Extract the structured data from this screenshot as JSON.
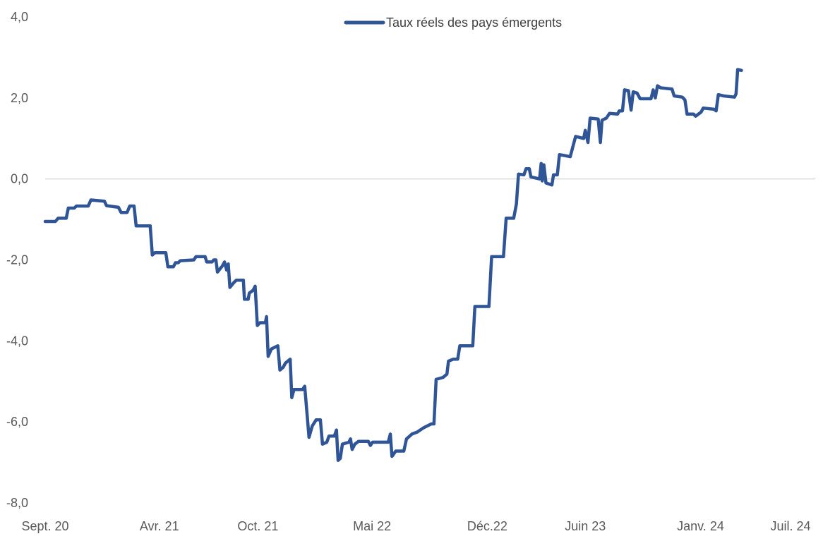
{
  "chart_data": {
    "type": "line",
    "title": "",
    "xlabel": "",
    "ylabel": "",
    "x_range": [
      "2020-09-01",
      "2024-08-01"
    ],
    "ylim": [
      -8,
      4
    ],
    "y_ticks": [
      4,
      2,
      0,
      -2,
      -4,
      -6,
      -8
    ],
    "y_tick_labels": [
      "4,0",
      "2,0",
      "0,0",
      "-2,0",
      "-4,0",
      "-6,0",
      "-8,0"
    ],
    "x_tick_labels": [
      {
        "date": "2020-09-01",
        "label": "Sept. 20"
      },
      {
        "date": "2021-04-01",
        "label": "Avr. 21"
      },
      {
        "date": "2021-10-01",
        "label": "Oct. 21"
      },
      {
        "date": "2022-05-01",
        "label": "Mai 22"
      },
      {
        "date": "2022-12-01",
        "label": "Déc.22"
      },
      {
        "date": "2023-06-01",
        "label": "Juin 23"
      },
      {
        "date": "2024-01-01",
        "label": "Janv. 24"
      },
      {
        "date": "2024-07-01",
        "label": "Juil. 24"
      }
    ],
    "zero_line": true,
    "grid": false,
    "legend_position": "top-center",
    "colors": {
      "series": "#2f5597",
      "zero_line": "#d9d9d9",
      "text": "#595959"
    },
    "series": [
      {
        "name": "Taux réels des pays émergents",
        "points": [
          [
            "2020-09-01",
            -1.05
          ],
          [
            "2020-09-20",
            -1.05
          ],
          [
            "2020-09-25",
            -0.97
          ],
          [
            "2020-10-10",
            -0.97
          ],
          [
            "2020-10-14",
            -0.72
          ],
          [
            "2020-10-25",
            -0.72
          ],
          [
            "2020-10-29",
            -0.67
          ],
          [
            "2020-11-20",
            -0.67
          ],
          [
            "2020-11-25",
            -0.52
          ],
          [
            "2020-12-20",
            -0.55
          ],
          [
            "2020-12-24",
            -0.66
          ],
          [
            "2021-01-15",
            -0.7
          ],
          [
            "2021-01-20",
            -0.83
          ],
          [
            "2021-01-31",
            -0.83
          ],
          [
            "2021-02-05",
            -0.67
          ],
          [
            "2021-02-13",
            -0.67
          ],
          [
            "2021-02-17",
            -1.16
          ],
          [
            "2021-03-15",
            -1.16
          ],
          [
            "2021-03-19",
            -1.88
          ],
          [
            "2021-03-24",
            -1.82
          ],
          [
            "2021-04-13",
            -1.82
          ],
          [
            "2021-04-17",
            -2.17
          ],
          [
            "2021-04-27",
            -2.17
          ],
          [
            "2021-05-01",
            -2.07
          ],
          [
            "2021-05-06",
            -2.07
          ],
          [
            "2021-05-10",
            -2.02
          ],
          [
            "2021-06-04",
            -2.0
          ],
          [
            "2021-06-08",
            -1.92
          ],
          [
            "2021-06-25",
            -1.92
          ],
          [
            "2021-06-28",
            -2.05
          ],
          [
            "2021-07-08",
            -2.05
          ],
          [
            "2021-07-11",
            -2.0
          ],
          [
            "2021-07-15",
            -2.0
          ],
          [
            "2021-07-18",
            -2.3
          ],
          [
            "2021-07-24",
            -2.2
          ],
          [
            "2021-07-27",
            -2.15
          ],
          [
            "2021-07-31",
            -2.05
          ],
          [
            "2021-08-04",
            -2.25
          ],
          [
            "2021-08-07",
            -2.1
          ],
          [
            "2021-08-10",
            -2.68
          ],
          [
            "2021-08-18",
            -2.55
          ],
          [
            "2021-08-22",
            -2.5
          ],
          [
            "2021-09-04",
            -2.5
          ],
          [
            "2021-09-06",
            -2.97
          ],
          [
            "2021-09-13",
            -2.97
          ],
          [
            "2021-09-15",
            -2.82
          ],
          [
            "2021-09-22",
            -2.75
          ],
          [
            "2021-09-26",
            -2.65
          ],
          [
            "2021-09-30",
            -3.62
          ],
          [
            "2021-10-05",
            -3.55
          ],
          [
            "2021-10-15",
            -3.55
          ],
          [
            "2021-10-17",
            -3.4
          ],
          [
            "2021-10-20",
            -4.38
          ],
          [
            "2021-10-26",
            -4.2
          ],
          [
            "2021-11-07",
            -4.12
          ],
          [
            "2021-11-11",
            -4.72
          ],
          [
            "2021-11-17",
            -4.65
          ],
          [
            "2021-11-21",
            -4.55
          ],
          [
            "2021-11-30",
            -4.45
          ],
          [
            "2021-12-03",
            -5.4
          ],
          [
            "2021-12-07",
            -5.2
          ],
          [
            "2021-12-23",
            -5.2
          ],
          [
            "2021-12-27",
            -5.12
          ],
          [
            "2022-01-04",
            -6.38
          ],
          [
            "2022-01-10",
            -6.1
          ],
          [
            "2022-01-17",
            -5.95
          ],
          [
            "2022-01-25",
            -5.95
          ],
          [
            "2022-01-29",
            -6.55
          ],
          [
            "2022-02-06",
            -6.5
          ],
          [
            "2022-02-10",
            -6.35
          ],
          [
            "2022-02-20",
            -6.35
          ],
          [
            "2022-02-24",
            -6.2
          ],
          [
            "2022-02-27",
            -6.95
          ],
          [
            "2022-03-03",
            -6.9
          ],
          [
            "2022-03-07",
            -6.55
          ],
          [
            "2022-03-19",
            -6.5
          ],
          [
            "2022-03-22",
            -6.42
          ],
          [
            "2022-03-25",
            -6.68
          ],
          [
            "2022-03-30",
            -6.55
          ],
          [
            "2022-04-06",
            -6.48
          ],
          [
            "2022-04-24",
            -6.48
          ],
          [
            "2022-04-28",
            -6.58
          ],
          [
            "2022-05-02",
            -6.5
          ],
          [
            "2022-05-31",
            -6.5
          ],
          [
            "2022-06-04",
            -6.3
          ],
          [
            "2022-06-07",
            -6.85
          ],
          [
            "2022-06-14",
            -6.72
          ],
          [
            "2022-06-29",
            -6.72
          ],
          [
            "2022-07-04",
            -6.42
          ],
          [
            "2022-07-14",
            -6.3
          ],
          [
            "2022-07-24",
            -6.25
          ],
          [
            "2022-08-04",
            -6.15
          ],
          [
            "2022-08-19",
            -6.05
          ],
          [
            "2022-08-24",
            -6.05
          ],
          [
            "2022-08-28",
            -4.95
          ],
          [
            "2022-09-10",
            -4.9
          ],
          [
            "2022-09-17",
            -4.82
          ],
          [
            "2022-09-20",
            -4.5
          ],
          [
            "2022-09-29",
            -4.45
          ],
          [
            "2022-10-07",
            -4.45
          ],
          [
            "2022-10-11",
            -4.12
          ],
          [
            "2022-11-04",
            -4.12
          ],
          [
            "2022-11-08",
            -3.15
          ],
          [
            "2022-12-04",
            -3.15
          ],
          [
            "2022-12-09",
            -1.92
          ],
          [
            "2022-12-31",
            -1.92
          ],
          [
            "2023-01-05",
            -0.97
          ],
          [
            "2023-01-19",
            -0.97
          ],
          [
            "2023-01-24",
            -0.62
          ],
          [
            "2023-01-28",
            0.12
          ],
          [
            "2023-02-07",
            0.1
          ],
          [
            "2023-02-11",
            0.25
          ],
          [
            "2023-02-17",
            0.25
          ],
          [
            "2023-02-20",
            0.05
          ],
          [
            "2023-03-08",
            0.0
          ],
          [
            "2023-03-11",
            0.38
          ],
          [
            "2023-03-13",
            -0.05
          ],
          [
            "2023-03-16",
            0.35
          ],
          [
            "2023-03-20",
            -0.1
          ],
          [
            "2023-03-31",
            -0.15
          ],
          [
            "2023-04-03",
            0.1
          ],
          [
            "2023-04-10",
            0.1
          ],
          [
            "2023-04-14",
            0.6
          ],
          [
            "2023-05-04",
            0.55
          ],
          [
            "2023-05-09",
            0.8
          ],
          [
            "2023-05-14",
            1.05
          ],
          [
            "2023-05-29",
            1.0
          ],
          [
            "2023-06-01",
            1.2
          ],
          [
            "2023-06-06",
            0.9
          ],
          [
            "2023-06-10",
            1.5
          ],
          [
            "2023-06-25",
            1.48
          ],
          [
            "2023-06-29",
            0.9
          ],
          [
            "2023-07-02",
            1.45
          ],
          [
            "2023-07-10",
            1.5
          ],
          [
            "2023-07-16",
            1.62
          ],
          [
            "2023-07-31",
            1.6
          ],
          [
            "2023-08-03",
            1.68
          ],
          [
            "2023-08-09",
            1.68
          ],
          [
            "2023-08-13",
            2.2
          ],
          [
            "2023-08-20",
            2.18
          ],
          [
            "2023-08-25",
            1.7
          ],
          [
            "2023-08-29",
            2.15
          ],
          [
            "2023-09-05",
            2.12
          ],
          [
            "2023-09-11",
            1.98
          ],
          [
            "2023-10-01",
            1.98
          ],
          [
            "2023-10-05",
            2.2
          ],
          [
            "2023-10-09",
            2.0
          ],
          [
            "2023-10-13",
            2.3
          ],
          [
            "2023-10-19",
            2.25
          ],
          [
            "2023-11-09",
            2.22
          ],
          [
            "2023-11-13",
            2.05
          ],
          [
            "2023-11-28",
            2.02
          ],
          [
            "2023-12-03",
            1.95
          ],
          [
            "2023-12-07",
            1.6
          ],
          [
            "2023-12-19",
            1.6
          ],
          [
            "2023-12-23",
            1.55
          ],
          [
            "2024-01-02",
            1.65
          ],
          [
            "2024-01-06",
            1.75
          ],
          [
            "2024-01-26",
            1.72
          ],
          [
            "2024-01-30",
            1.68
          ],
          [
            "2024-02-03",
            2.08
          ],
          [
            "2024-02-13",
            2.05
          ],
          [
            "2024-03-04",
            2.02
          ],
          [
            "2024-03-07",
            2.1
          ],
          [
            "2024-03-10",
            2.7
          ],
          [
            "2024-03-17",
            2.68
          ]
        ]
      }
    ]
  }
}
